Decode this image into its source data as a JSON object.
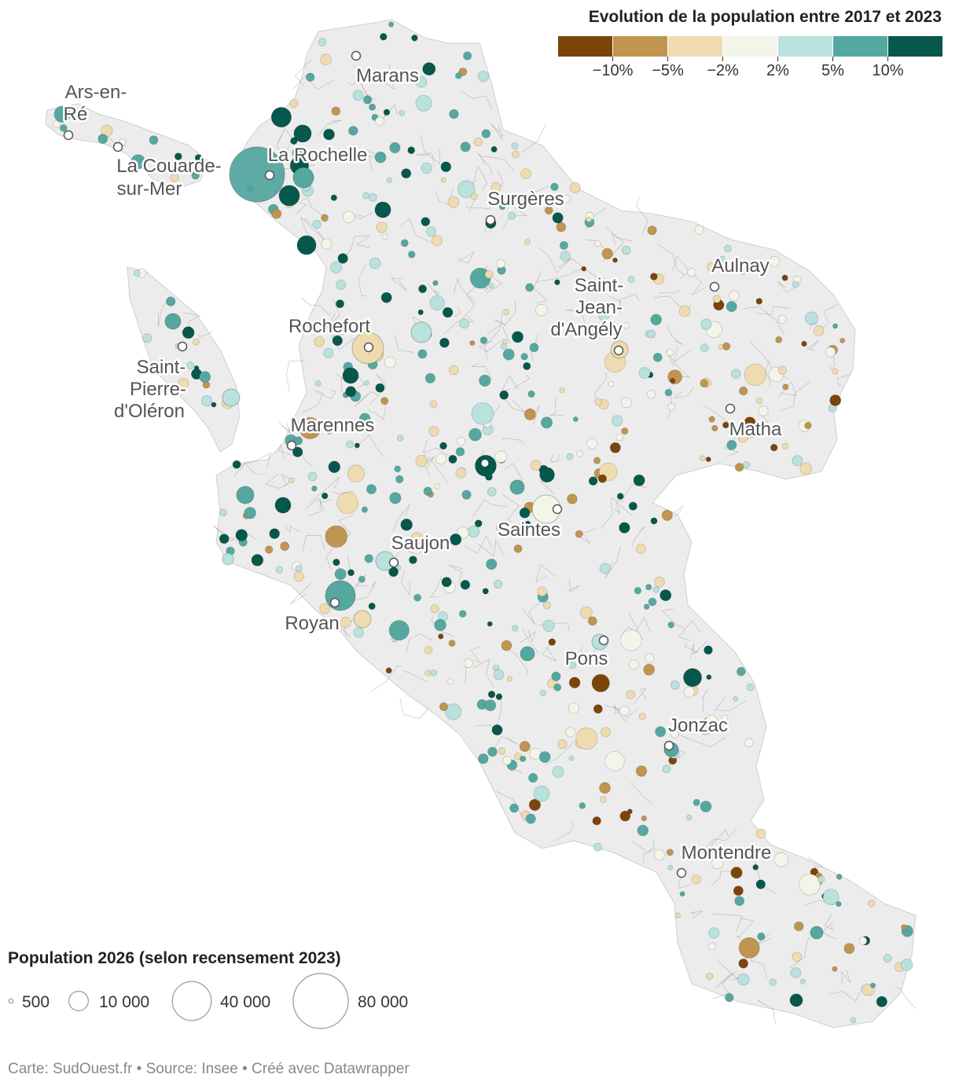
{
  "title": "Evolution de la population entre 2017 et 2023",
  "size_legend": {
    "title": "Population 2026 (selon recensement 2023)",
    "items": [
      {
        "label": "500",
        "value": 500
      },
      {
        "label": "10 000",
        "value": 10000
      },
      {
        "label": "40 000",
        "value": 40000
      },
      {
        "label": "80 000",
        "value": 80000
      }
    ]
  },
  "color_legend": {
    "ticks": [
      "−10%",
      "−5%",
      "−2%",
      "2%",
      "5%",
      "10%"
    ],
    "colors": [
      "#7b4409",
      "#bf9550",
      "#efdbb0",
      "#f4f5e9",
      "#b9e1dd",
      "#55a8a0",
      "#06574c"
    ]
  },
  "cities": [
    "Marans",
    "Ars-en-Ré",
    "La Rochelle",
    "La Couarde-sur-Mer",
    "Surgères",
    "Aulnay",
    "Saint-Jean-d'Angély",
    "Rochefort",
    "Saint-Pierre-d'Oléron",
    "Marennes",
    "Matha",
    "Saintes",
    "Saujon",
    "Royan",
    "Pons",
    "Jonzac",
    "Montendre"
  ],
  "footer": "Carte: SudOuest.fr • Source: Insee • Créé avec Datawrapper"
}
